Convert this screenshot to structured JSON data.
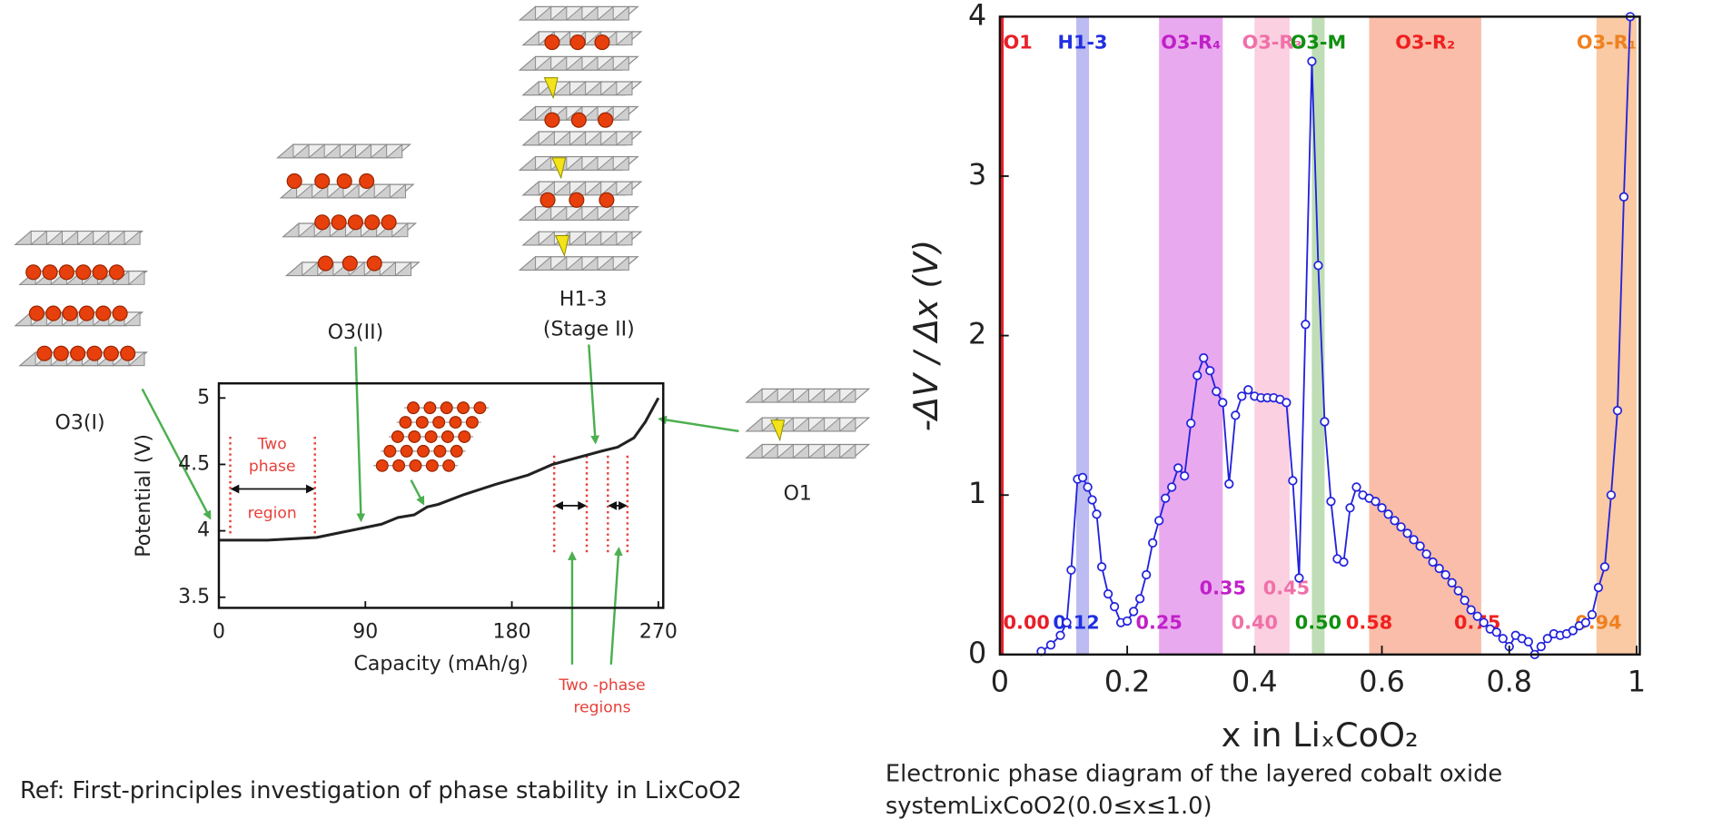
{
  "chart_data": [
    {
      "type": "line",
      "x_label": "Capacity (mAh/g)",
      "y_label": "Potential (V)",
      "x": [
        0,
        30,
        60,
        80,
        100,
        110,
        120,
        128,
        135,
        150,
        170,
        190,
        205,
        220,
        235,
        245,
        255,
        262,
        270
      ],
      "values": [
        3.93,
        3.93,
        3.95,
        4.0,
        4.05,
        4.1,
        4.12,
        4.18,
        4.2,
        4.27,
        4.35,
        4.42,
        4.5,
        4.55,
        4.6,
        4.63,
        4.7,
        4.82,
        5.0
      ],
      "color": "#222222",
      "xlim": [
        0,
        273
      ],
      "ylim": [
        3.42,
        5.11
      ],
      "xticks": [
        0,
        90,
        180,
        270
      ],
      "yticks": [
        3.5,
        4,
        4.5,
        5
      ],
      "two_phase_regions": [
        [
          7,
          59
        ],
        [
          206,
          226
        ],
        [
          239,
          251
        ]
      ],
      "region_label": [
        "Two",
        "phase",
        "region"
      ],
      "regions_label": [
        "Two -phase",
        "regions"
      ],
      "structure_labels": [
        "O3(I)",
        "O3(II)",
        "H1-3",
        "(Stage II)",
        "O1"
      ]
    },
    {
      "type": "line",
      "x_label": "x in LiₓCoO₂",
      "y_label": "-ΔV / Δx (V)",
      "x": [
        0.065,
        0.08,
        0.095,
        0.105,
        0.112,
        0.122,
        0.13,
        0.138,
        0.145,
        0.152,
        0.16,
        0.17,
        0.18,
        0.19,
        0.2,
        0.21,
        0.22,
        0.23,
        0.24,
        0.25,
        0.26,
        0.27,
        0.28,
        0.29,
        0.3,
        0.31,
        0.32,
        0.33,
        0.34,
        0.35,
        0.36,
        0.37,
        0.38,
        0.39,
        0.4,
        0.41,
        0.42,
        0.43,
        0.44,
        0.45,
        0.46,
        0.47,
        0.48,
        0.49,
        0.5,
        0.51,
        0.52,
        0.53,
        0.54,
        0.55,
        0.56,
        0.57,
        0.58,
        0.59,
        0.6,
        0.61,
        0.62,
        0.63,
        0.64,
        0.65,
        0.66,
        0.67,
        0.68,
        0.69,
        0.7,
        0.71,
        0.72,
        0.73,
        0.74,
        0.75,
        0.76,
        0.77,
        0.78,
        0.79,
        0.8,
        0.81,
        0.82,
        0.83,
        0.84,
        0.85,
        0.86,
        0.87,
        0.88,
        0.89,
        0.9,
        0.91,
        0.92,
        0.93,
        0.94,
        0.95,
        0.96,
        0.97,
        0.98,
        0.99
      ],
      "values": [
        0.02,
        0.06,
        0.12,
        0.2,
        0.53,
        1.1,
        1.11,
        1.05,
        0.97,
        0.88,
        0.55,
        0.38,
        0.3,
        0.2,
        0.21,
        0.27,
        0.35,
        0.5,
        0.7,
        0.84,
        0.98,
        1.05,
        1.17,
        1.12,
        1.45,
        1.75,
        1.86,
        1.78,
        1.65,
        1.58,
        1.07,
        1.5,
        1.62,
        1.66,
        1.62,
        1.61,
        1.61,
        1.61,
        1.6,
        1.58,
        1.09,
        0.48,
        2.07,
        3.72,
        2.44,
        1.46,
        0.96,
        0.6,
        0.58,
        0.92,
        1.05,
        1.0,
        0.98,
        0.96,
        0.92,
        0.88,
        0.84,
        0.8,
        0.76,
        0.72,
        0.68,
        0.63,
        0.58,
        0.54,
        0.5,
        0.45,
        0.4,
        0.34,
        0.28,
        0.24,
        0.2,
        0.16,
        0.14,
        0.1,
        0.05,
        0.12,
        0.1,
        0.08,
        0.0,
        0.05,
        0.1,
        0.13,
        0.12,
        0.13,
        0.15,
        0.18,
        0.2,
        0.25,
        0.42,
        0.55,
        1.0,
        1.53,
        2.87,
        4.0
      ],
      "color": "#2222dd",
      "xlim": [
        0,
        1.005
      ],
      "ylim": [
        0,
        4
      ],
      "xticks": [
        0,
        0.2,
        0.4,
        0.6,
        0.8,
        1
      ],
      "yticks": [
        0,
        1,
        2,
        3,
        4
      ],
      "bands": [
        {
          "name": "O1",
          "xlim": [
            0,
            0.006
          ],
          "color": "#e8202a",
          "label_color": "#e8202a"
        },
        {
          "name": "H1-3",
          "xlim": [
            0.12,
            0.14
          ],
          "color": "#bcbcf2",
          "label_color": "#2030e0"
        },
        {
          "name": "O3-R₄",
          "xlim": [
            0.25,
            0.35
          ],
          "color": "#e9a9ef",
          "label_color": "#c020c8"
        },
        {
          "name": "O3-R₃",
          "xlim": [
            0.4,
            0.455
          ],
          "color": "#fbd0e1",
          "label_color": "#f070a8"
        },
        {
          "name": "O3-M",
          "xlim": [
            0.49,
            0.51
          ],
          "color": "#bfdeb6",
          "label_color": "#109010"
        },
        {
          "name": "O3-R₂",
          "xlim": [
            0.58,
            0.756
          ],
          "color": "#f9bda9",
          "label_color": "#f02020"
        },
        {
          "name": "O3-R₁",
          "xlim": [
            0.937,
            1.0
          ],
          "color": "#f9caa3",
          "label_color": "#f08020"
        }
      ],
      "boundary_labels": [
        {
          "value": 0,
          "label": "0.00",
          "color": "#e8202a"
        },
        {
          "value": 0.12,
          "label": "0.12",
          "color": "#2030e0"
        },
        {
          "value": 0.25,
          "label": "0.25",
          "color": "#c020c8"
        },
        {
          "value": 0.35,
          "label": "0.35",
          "color": "#c020c8"
        },
        {
          "value": 0.4,
          "label": "0.40",
          "color": "#f070a8"
        },
        {
          "value": 0.45,
          "label": "0.45",
          "color": "#f070a8"
        },
        {
          "value": 0.5,
          "label": "0.50",
          "color": "#109010"
        },
        {
          "value": 0.58,
          "label": "0.58",
          "color": "#f02020"
        },
        {
          "value": 0.75,
          "label": "0.75",
          "color": "#f02020"
        },
        {
          "value": 0.94,
          "label": "0.94",
          "color": "#f08020"
        }
      ]
    }
  ],
  "captions": {
    "left": "Ref: First-principles investigation of phase stability in LixCoO2",
    "right": [
      "Electronic phase diagram of the layered cobalt oxide",
      "systemLixCoO2(0.0≤x≤1.0)"
    ]
  }
}
